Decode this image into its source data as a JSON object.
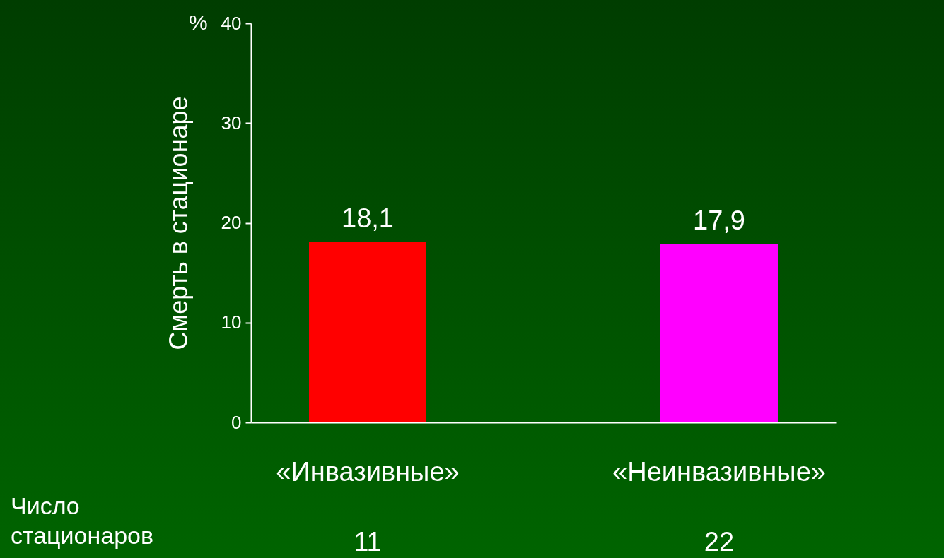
{
  "chart_data": {
    "type": "bar",
    "ylabel": "Смерть в стационаре",
    "categories": [
      "«Инвазивные»",
      "«Неинвазивные»"
    ],
    "values": [
      18.1,
      17.9
    ],
    "colors": [
      "#ff0000",
      "#ff00ff"
    ],
    "value_labels": [
      "18,1",
      "17,9"
    ],
    "ylim": [
      0,
      40
    ],
    "yticks": [
      0,
      10,
      20,
      30,
      40
    ],
    "grid": false,
    "annotations": [
      "%",
      "Число стационаров",
      "11",
      "22"
    ]
  }
}
